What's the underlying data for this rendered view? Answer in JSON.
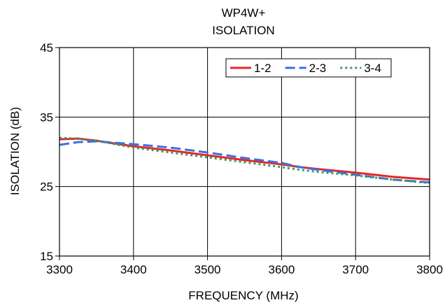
{
  "chart_data": {
    "type": "line",
    "title": "WP4W+",
    "subtitle": "ISOLATION",
    "xlabel": "FREQUENCY (MHz)",
    "ylabel": "ISOLATION (dB)",
    "xlim": [
      3300,
      3800
    ],
    "ylim": [
      15,
      45
    ],
    "xticks": [
      "3300",
      "3400",
      "3500",
      "3600",
      "3700",
      "3800"
    ],
    "yticks": [
      "15",
      "25",
      "35",
      "45"
    ],
    "grid": true,
    "legend_position": "top-right",
    "series": [
      {
        "name": "1-2",
        "color": "#e8262a",
        "style": "solid",
        "x": [
          3300,
          3325,
          3350,
          3375,
          3400,
          3450,
          3500,
          3550,
          3600,
          3625,
          3650,
          3700,
          3750,
          3800
        ],
        "y": [
          31.8,
          31.9,
          31.6,
          31.2,
          30.8,
          30.2,
          29.5,
          28.8,
          28.2,
          27.8,
          27.5,
          27.0,
          26.4,
          26.0
        ]
      },
      {
        "name": "2-3",
        "color": "#3b6fe0",
        "style": "dashed",
        "x": [
          3300,
          3325,
          3350,
          3375,
          3400,
          3450,
          3500,
          3550,
          3600,
          3625,
          3650,
          3700,
          3750,
          3800
        ],
        "y": [
          31.0,
          31.4,
          31.5,
          31.3,
          31.1,
          30.6,
          29.9,
          29.1,
          28.4,
          27.8,
          27.4,
          26.7,
          26.0,
          25.6
        ]
      },
      {
        "name": "3-4",
        "color": "#3e9a5e",
        "style": "dotted",
        "x": [
          3300,
          3325,
          3350,
          3375,
          3400,
          3450,
          3500,
          3550,
          3600,
          3625,
          3650,
          3700,
          3750,
          3800
        ],
        "y": [
          32.0,
          31.9,
          31.6,
          31.1,
          30.6,
          29.9,
          29.2,
          28.5,
          27.8,
          27.4,
          27.1,
          26.6,
          26.0,
          25.5
        ]
      }
    ]
  }
}
